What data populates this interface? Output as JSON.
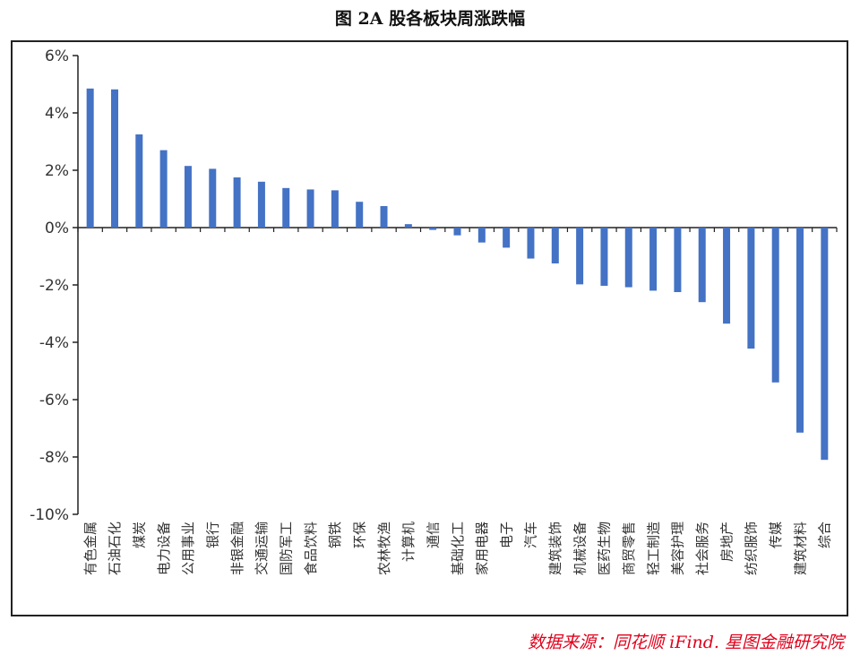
{
  "title": "图 2A 股各板块周涨跌幅",
  "source": "数据来源：同花顺 iFind. 星图金融研究院",
  "colors": {
    "bar": "#4472C4",
    "axis": "#222222",
    "text": "#333333",
    "source": "#e0001b"
  },
  "chart_data": {
    "type": "bar",
    "title": "图 2A 股各板块周涨跌幅",
    "xlabel": "",
    "ylabel": "",
    "ylim": [
      -10,
      6
    ],
    "yticks": [
      6,
      4,
      2,
      0,
      -2,
      -4,
      -6,
      -8,
      -10
    ],
    "ytick_labels": [
      "6%",
      "4%",
      "2%",
      "0%",
      "-2%",
      "-4%",
      "-6%",
      "-8%",
      "-10%"
    ],
    "grid": false,
    "categories": [
      "有色金属",
      "石油石化",
      "煤炭",
      "电力设备",
      "公用事业",
      "银行",
      "非银金融",
      "交通运输",
      "国防军工",
      "食品饮料",
      "钢铁",
      "环保",
      "农林牧渔",
      "计算机",
      "通信",
      "基础化工",
      "家用电器",
      "电子",
      "汽车",
      "建筑装饰",
      "机械设备",
      "医药生物",
      "商贸零售",
      "轻工制造",
      "美容护理",
      "社会服务",
      "房地产",
      "纺织服饰",
      "传媒",
      "建筑材料",
      "综合"
    ],
    "values": [
      4.85,
      4.82,
      3.25,
      2.7,
      2.15,
      2.05,
      1.75,
      1.6,
      1.38,
      1.33,
      1.3,
      0.9,
      0.75,
      0.12,
      -0.08,
      -0.27,
      -0.52,
      -0.7,
      -1.08,
      -1.25,
      -1.98,
      -2.03,
      -2.08,
      -2.2,
      -2.25,
      -2.6,
      -3.35,
      -4.22,
      -5.4,
      -7.15,
      -8.1
    ]
  }
}
